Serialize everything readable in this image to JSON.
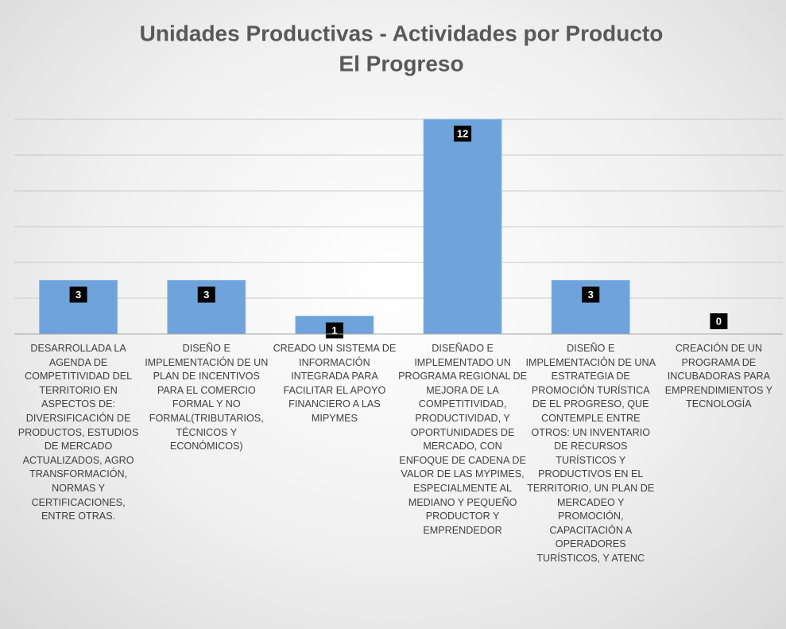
{
  "chart_data": {
    "type": "bar",
    "title": "Unidades Productivas - Actividades por Producto",
    "subtitle": "El Progreso",
    "categories": [
      "DESARROLLADA LA AGENDA DE COMPETITIVIDAD DEL TERRITORIO EN ASPECTOS DE: DIVERSIFICACIÓN DE PRODUCTOS, ESTUDIOS DE MERCADO ACTUALIZADOS, AGRO TRANSFORMACIÓN, NORMAS Y CERTIFICACIONES, ENTRE OTRAS.",
      "DISEÑO E IMPLEMENTACIÓN DE UN PLAN DE INCENTIVOS PARA EL COMERCIO FORMAL Y NO FORMAL(TRIBUTARIOS, TÉCNICOS Y ECONÓMICOS)",
      "CREADO UN SISTEMA DE INFORMACIÓN INTEGRADA PARA FACILITAR EL APOYO FINANCIERO A LAS MIPYMES",
      "DISEÑADO E IMPLEMENTADO UN PROGRAMA REGIONAL DE MEJORA DE LA COMPETITIVIDAD, PRODUCTIVIDAD, Y OPORTUNIDADES DE MERCADO, CON ENFOQUE DE CADENA DE VALOR DE LAS MYPIMES, ESPECIALMENTE AL MEDIANO Y PEQUEÑO PRODUCTOR Y EMPRENDEDOR",
      "DISEÑO E IMPLEMENTACIÓN DE UNA ESTRATEGIA DE PROMOCIÓN TURÍSTICA DE EL PROGRESO, QUE CONTEMPLE ENTRE OTROS: UN INVENTARIO DE RECURSOS TURÍSTICOS Y PRODUCTIVOS EN EL TERRITORIO, UN PLAN DE MERCADEO Y PROMOCIÓN, CAPACITACIÓN A OPERADORES TURÍSTICOS, Y ATENC",
      "CREACIÓN DE UN PROGRAMA DE INCUBADORAS PARA EMPRENDIMIENTOS Y TECNOLOGÍA"
    ],
    "values": [
      3,
      3,
      1,
      12,
      3,
      0
    ],
    "color": "#6fa3db",
    "ylim": [
      0,
      12
    ],
    "yticks": [
      0,
      2,
      4,
      6,
      8,
      10,
      12
    ],
    "grid": true
  }
}
